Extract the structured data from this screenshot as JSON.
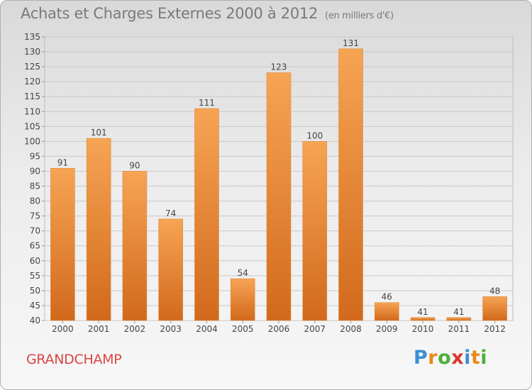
{
  "title": "Achats et Charges Externes 2000 à 2012",
  "unit": "(en milliers d'€)",
  "commune": "GRANDCHAMP",
  "logo": {
    "letters": [
      "P",
      "r",
      "o",
      "x",
      "i",
      "t",
      "i"
    ],
    "colors": [
      "#3a8fd6",
      "#e8891a",
      "#4caf3a",
      "#d8362f",
      "#3a8fd6",
      "#e8891a",
      "#4caf3a"
    ]
  },
  "colors": {
    "bar": "#f29a45",
    "bar_dark": "#d9731f",
    "title": "#7a7a7a",
    "commune": "#d94444"
  },
  "chart_data": {
    "type": "bar",
    "title": "Achats et Charges Externes 2000 à 2012",
    "subtitle": "(en milliers d'€)",
    "categories": [
      "2000",
      "2001",
      "2002",
      "2003",
      "2004",
      "2005",
      "2006",
      "2007",
      "2008",
      "2009",
      "2010",
      "2011",
      "2012"
    ],
    "values": [
      91,
      101,
      90,
      74,
      111,
      54,
      123,
      100,
      131,
      46,
      41,
      41,
      48
    ],
    "ylim": [
      40,
      135
    ],
    "yticks": [
      40,
      45,
      50,
      55,
      60,
      65,
      70,
      75,
      80,
      85,
      90,
      95,
      100,
      105,
      110,
      115,
      120,
      125,
      130,
      135
    ],
    "grid": true,
    "legend": "none"
  }
}
